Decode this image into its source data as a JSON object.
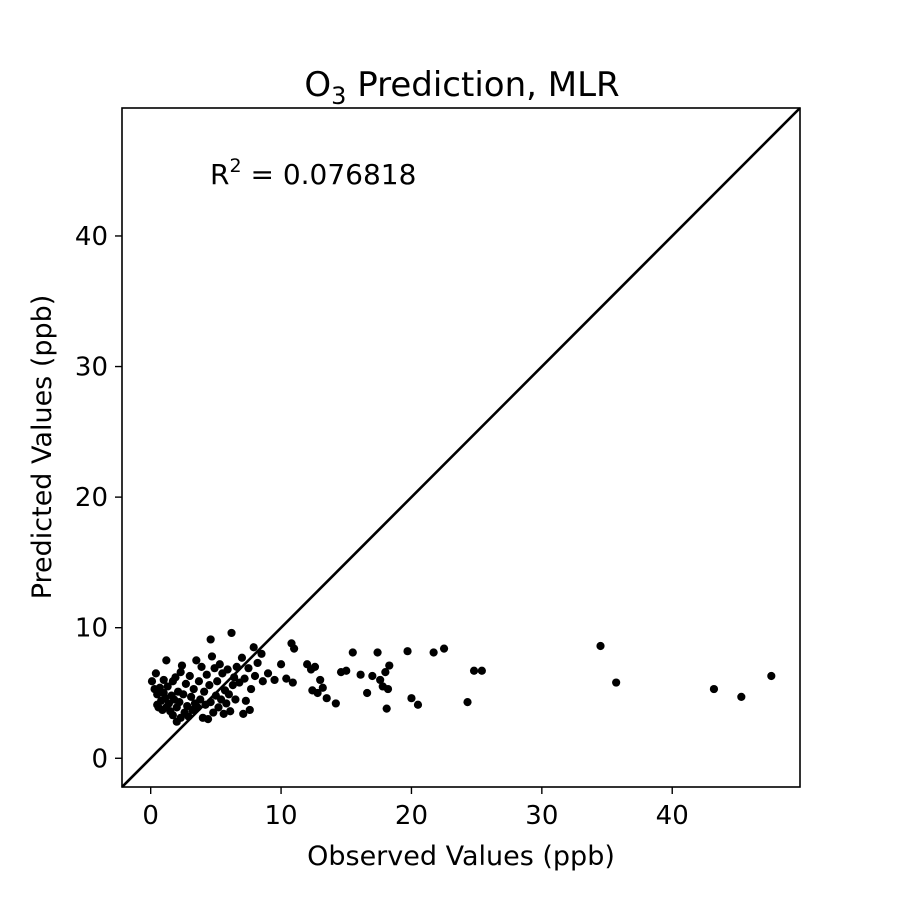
{
  "chart_data": {
    "type": "scatter",
    "title": {
      "main": "O",
      "sub": "3",
      "rest": " Prediction, MLR"
    },
    "xlabel": "Observed Values (ppb)",
    "ylabel": "Predicted Values (ppb)",
    "annotation": {
      "text": "R",
      "sup": "2",
      "rest": " = 0.076818"
    },
    "xlim": [
      -2.2,
      49.8
    ],
    "ylim": [
      -2.2,
      49.8
    ],
    "xticks": [
      0,
      10,
      20,
      30,
      40
    ],
    "yticks": [
      0,
      10,
      20,
      30,
      40
    ],
    "grid": false,
    "reference_line": {
      "type": "identity",
      "color": "#000000"
    },
    "point_color": "#000000",
    "points": [
      [
        0.1,
        5.9
      ],
      [
        0.3,
        5.3
      ],
      [
        0.4,
        6.5
      ],
      [
        0.5,
        4.1
      ],
      [
        0.5,
        4.9
      ],
      [
        0.6,
        3.9
      ],
      [
        0.7,
        5.4
      ],
      [
        0.8,
        4.4
      ],
      [
        0.9,
        3.7
      ],
      [
        1.0,
        5.0
      ],
      [
        1.0,
        6.0
      ],
      [
        1.1,
        4.6
      ],
      [
        1.2,
        3.9
      ],
      [
        1.2,
        7.5
      ],
      [
        1.3,
        5.5
      ],
      [
        1.4,
        4.2
      ],
      [
        1.5,
        3.6
      ],
      [
        1.6,
        4.8
      ],
      [
        1.7,
        5.9
      ],
      [
        1.7,
        3.3
      ],
      [
        1.8,
        4.5
      ],
      [
        1.9,
        6.2
      ],
      [
        2.0,
        2.8
      ],
      [
        2.0,
        3.9
      ],
      [
        2.1,
        5.1
      ],
      [
        2.2,
        4.3
      ],
      [
        2.3,
        3.1
      ],
      [
        2.3,
        6.6
      ],
      [
        2.4,
        7.1
      ],
      [
        2.5,
        4.9
      ],
      [
        2.6,
        3.5
      ],
      [
        2.7,
        5.7
      ],
      [
        2.8,
        4.0
      ],
      [
        2.9,
        3.2
      ],
      [
        3.0,
        6.3
      ],
      [
        3.1,
        4.7
      ],
      [
        3.2,
        3.7
      ],
      [
        3.3,
        5.3
      ],
      [
        3.4,
        4.2
      ],
      [
        3.5,
        7.5
      ],
      [
        3.6,
        3.9
      ],
      [
        3.7,
        5.9
      ],
      [
        3.8,
        4.5
      ],
      [
        3.9,
        7.0
      ],
      [
        4.0,
        3.1
      ],
      [
        4.1,
        5.1
      ],
      [
        4.2,
        4.1
      ],
      [
        4.3,
        6.4
      ],
      [
        4.4,
        3.0
      ],
      [
        4.5,
        5.6
      ],
      [
        4.6,
        4.3
      ],
      [
        4.6,
        9.1
      ],
      [
        4.7,
        7.8
      ],
      [
        4.8,
        3.5
      ],
      [
        4.9,
        6.9
      ],
      [
        5.0,
        4.8
      ],
      [
        5.1,
        5.9
      ],
      [
        5.2,
        3.9
      ],
      [
        5.3,
        7.2
      ],
      [
        5.4,
        4.5
      ],
      [
        5.5,
        6.5
      ],
      [
        5.6,
        3.4
      ],
      [
        5.7,
        5.2
      ],
      [
        5.8,
        4.2
      ],
      [
        5.9,
        6.8
      ],
      [
        6.0,
        4.9
      ],
      [
        6.1,
        3.6
      ],
      [
        6.2,
        9.6
      ],
      [
        6.3,
        5.6
      ],
      [
        6.4,
        6.2
      ],
      [
        6.5,
        4.5
      ],
      [
        6.6,
        7.0
      ],
      [
        6.8,
        5.8
      ],
      [
        7.0,
        7.7
      ],
      [
        7.1,
        3.4
      ],
      [
        7.2,
        6.1
      ],
      [
        7.3,
        4.4
      ],
      [
        7.5,
        6.9
      ],
      [
        7.6,
        3.7
      ],
      [
        7.7,
        5.3
      ],
      [
        7.9,
        8.5
      ],
      [
        8.0,
        6.3
      ],
      [
        8.2,
        7.3
      ],
      [
        8.5,
        8.0
      ],
      [
        8.6,
        5.9
      ],
      [
        9.0,
        6.5
      ],
      [
        9.5,
        6.0
      ],
      [
        10.0,
        7.2
      ],
      [
        10.4,
        6.1
      ],
      [
        10.8,
        8.8
      ],
      [
        10.9,
        5.8
      ],
      [
        11.0,
        8.4
      ],
      [
        12.0,
        7.2
      ],
      [
        12.3,
        6.8
      ],
      [
        12.4,
        5.2
      ],
      [
        12.6,
        7.0
      ],
      [
        12.8,
        5.0
      ],
      [
        13.0,
        6.0
      ],
      [
        13.2,
        5.4
      ],
      [
        13.5,
        4.6
      ],
      [
        14.2,
        4.2
      ],
      [
        14.6,
        6.6
      ],
      [
        15.0,
        6.7
      ],
      [
        15.5,
        8.1
      ],
      [
        16.1,
        6.4
      ],
      [
        16.6,
        5.0
      ],
      [
        17.0,
        6.3
      ],
      [
        17.4,
        8.1
      ],
      [
        17.6,
        6.0
      ],
      [
        17.8,
        5.5
      ],
      [
        18.0,
        6.6
      ],
      [
        18.1,
        3.8
      ],
      [
        18.2,
        5.3
      ],
      [
        18.3,
        7.1
      ],
      [
        19.7,
        8.2
      ],
      [
        20.0,
        4.6
      ],
      [
        20.5,
        4.1
      ],
      [
        21.7,
        8.1
      ],
      [
        22.5,
        8.4
      ],
      [
        24.3,
        4.3
      ],
      [
        24.8,
        6.7
      ],
      [
        25.4,
        6.7
      ],
      [
        34.5,
        8.6
      ],
      [
        35.7,
        5.8
      ],
      [
        43.2,
        5.3
      ],
      [
        45.3,
        4.7
      ],
      [
        47.6,
        6.3
      ]
    ]
  }
}
